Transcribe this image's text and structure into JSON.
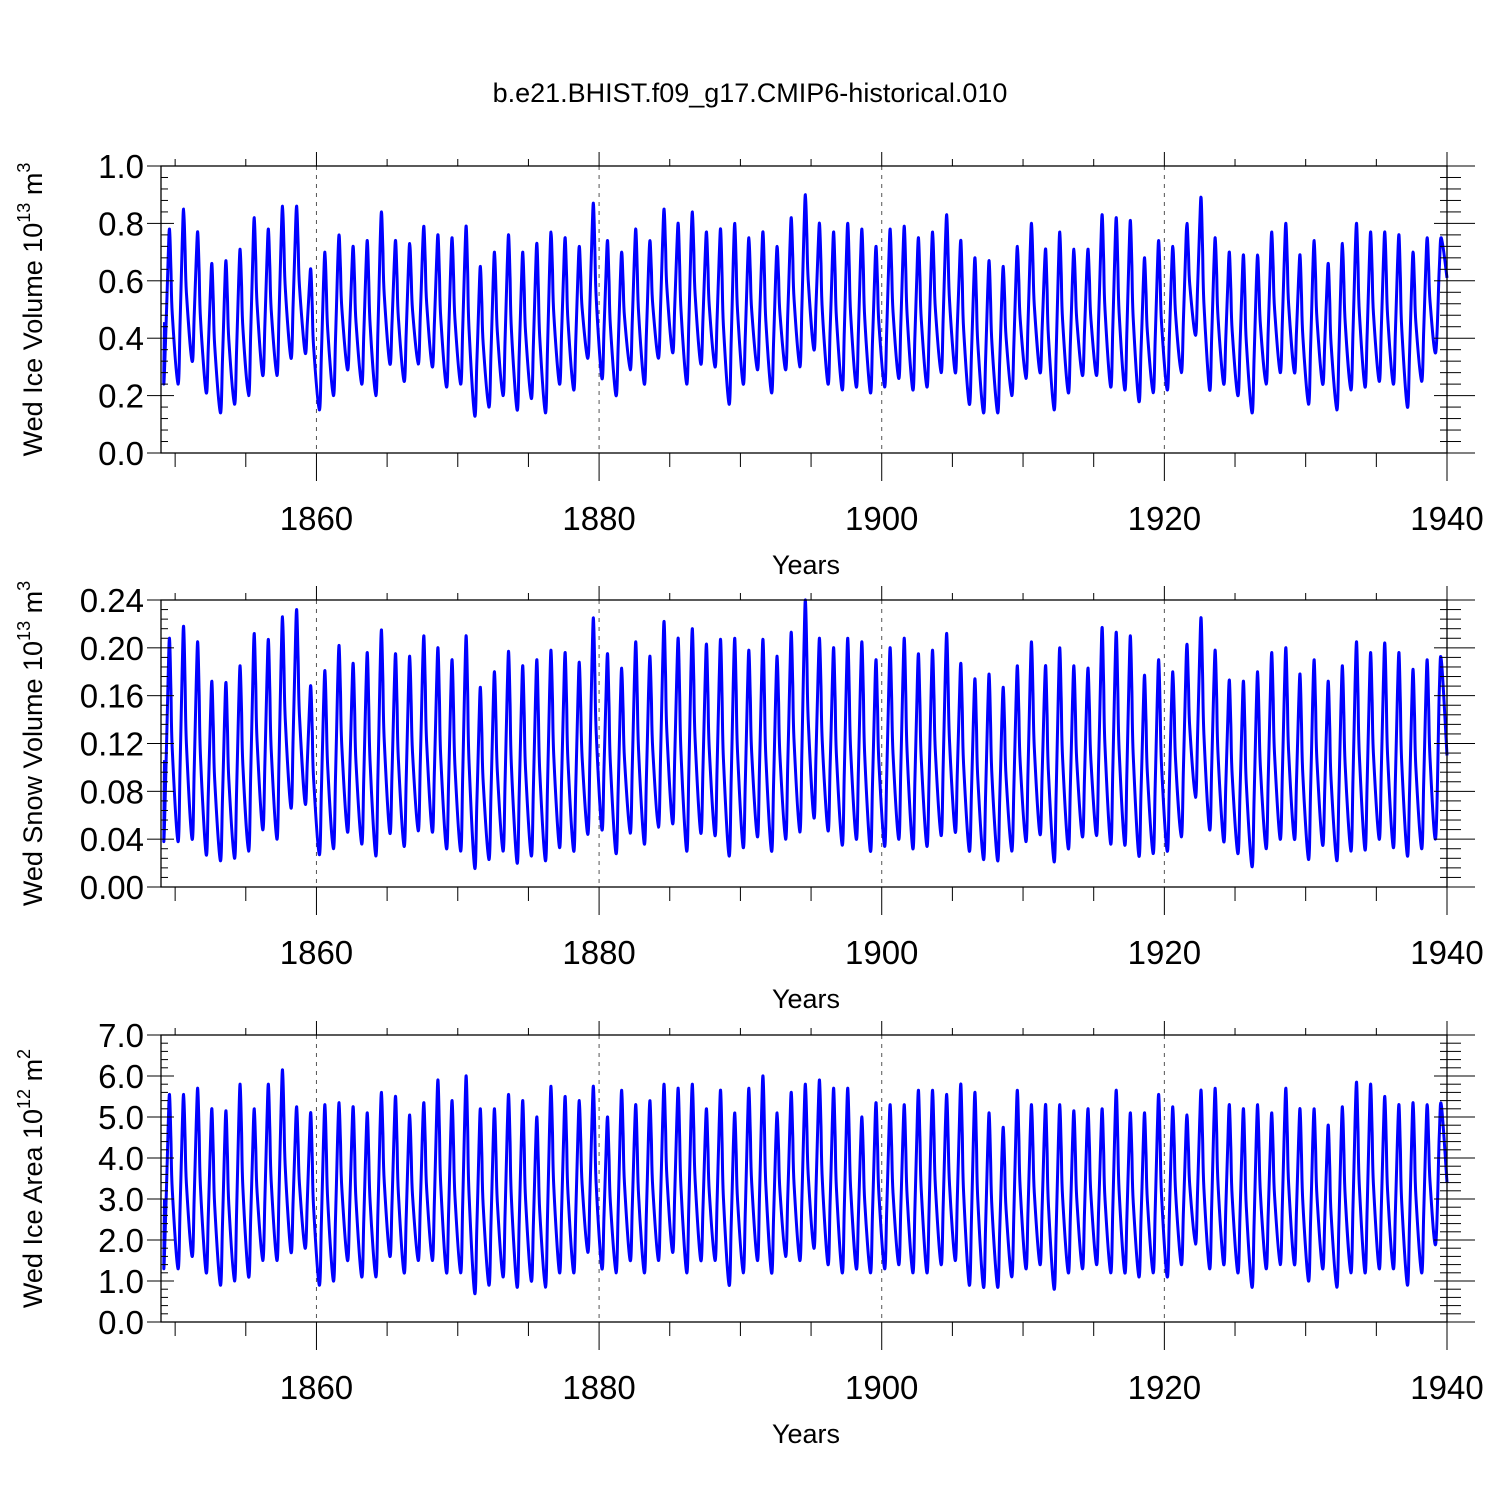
{
  "title": "b.e21.BHIST.f09_g17.CMIP6-historical.010",
  "colors": {
    "series": "#0000ff",
    "axis": "#000000",
    "grid": "#555555",
    "background": "#ffffff"
  },
  "chart_data": [
    {
      "type": "line",
      "ylabel": "Wed Ice Volume 10^13 m^3",
      "ylabel_parts": {
        "main": "Wed Ice Volume 10",
        "exp1": "13",
        "mid": " m",
        "exp2": "3"
      },
      "xlabel": "Years",
      "xlim": [
        1849,
        1940
      ],
      "ylim": [
        0,
        1.0
      ],
      "yticks": [
        0.0,
        0.2,
        0.4,
        0.6,
        0.8,
        1.0
      ],
      "ytick_labels": [
        "0.0",
        "0.2",
        "0.4",
        "0.6",
        "0.8",
        "1.0"
      ],
      "xticks": [
        1860,
        1880,
        1900,
        1920,
        1940
      ],
      "xtick_labels": [
        "1860",
        "1880",
        "1900",
        "1920",
        "1940"
      ],
      "series": [
        {
          "name": "Wed Ice Volume",
          "sample": "annual min/max, monthly seasonal cycle",
          "years": [
            1850,
            1851,
            1852,
            1853,
            1854,
            1855,
            1856,
            1857,
            1858,
            1859,
            1860,
            1861,
            1862,
            1863,
            1864,
            1865,
            1866,
            1867,
            1868,
            1869,
            1870,
            1871,
            1872,
            1873,
            1874,
            1875,
            1876,
            1877,
            1878,
            1879,
            1880,
            1881,
            1882,
            1883,
            1884,
            1885,
            1886,
            1887,
            1888,
            1889,
            1890,
            1891,
            1892,
            1893,
            1894,
            1895,
            1896,
            1897,
            1898,
            1899,
            1900,
            1901,
            1902,
            1903,
            1904,
            1905,
            1906,
            1907,
            1908,
            1909,
            1910,
            1911,
            1912,
            1913,
            1914,
            1915,
            1916,
            1917,
            1918,
            1919,
            1920,
            1921,
            1922,
            1923,
            1924,
            1925,
            1926,
            1927,
            1928,
            1929,
            1930,
            1931,
            1932,
            1933,
            1934,
            1935,
            1936,
            1937,
            1938,
            1939
          ],
          "min": [
            0.24,
            0.32,
            0.21,
            0.14,
            0.17,
            0.2,
            0.27,
            0.27,
            0.33,
            0.35,
            0.15,
            0.2,
            0.29,
            0.24,
            0.2,
            0.31,
            0.25,
            0.31,
            0.3,
            0.23,
            0.24,
            0.13,
            0.16,
            0.2,
            0.15,
            0.19,
            0.14,
            0.24,
            0.22,
            0.33,
            0.26,
            0.2,
            0.29,
            0.24,
            0.33,
            0.35,
            0.24,
            0.31,
            0.3,
            0.17,
            0.24,
            0.29,
            0.21,
            0.29,
            0.3,
            0.36,
            0.24,
            0.22,
            0.23,
            0.21,
            0.23,
            0.26,
            0.22,
            0.23,
            0.28,
            0.28,
            0.17,
            0.14,
            0.14,
            0.2,
            0.26,
            0.28,
            0.15,
            0.21,
            0.27,
            0.27,
            0.23,
            0.22,
            0.18,
            0.21,
            0.22,
            0.28,
            0.41,
            0.22,
            0.24,
            0.2,
            0.14,
            0.24,
            0.28,
            0.28,
            0.17,
            0.24,
            0.15,
            0.22,
            0.23,
            0.25,
            0.24,
            0.16,
            0.25,
            0.35
          ],
          "max": [
            0.78,
            0.85,
            0.77,
            0.66,
            0.67,
            0.71,
            0.82,
            0.78,
            0.86,
            0.86,
            0.64,
            0.7,
            0.76,
            0.72,
            0.74,
            0.84,
            0.74,
            0.73,
            0.79,
            0.76,
            0.75,
            0.79,
            0.65,
            0.7,
            0.76,
            0.7,
            0.73,
            0.77,
            0.75,
            0.72,
            0.87,
            0.74,
            0.7,
            0.78,
            0.74,
            0.85,
            0.8,
            0.84,
            0.77,
            0.78,
            0.8,
            0.75,
            0.77,
            0.72,
            0.82,
            0.9,
            0.8,
            0.77,
            0.8,
            0.78,
            0.72,
            0.78,
            0.79,
            0.75,
            0.77,
            0.83,
            0.74,
            0.68,
            0.67,
            0.65,
            0.72,
            0.8,
            0.71,
            0.77,
            0.71,
            0.71,
            0.83,
            0.82,
            0.81,
            0.68,
            0.74,
            0.72,
            0.8,
            0.89,
            0.75,
            0.7,
            0.69,
            0.69,
            0.77,
            0.8,
            0.69,
            0.74,
            0.66,
            0.73,
            0.8,
            0.77,
            0.77,
            0.76,
            0.7,
            0.75
          ],
          "end_value": 0.61
        }
      ]
    },
    {
      "type": "line",
      "ylabel": "Wed Snow Volume 10^13 m^3",
      "ylabel_parts": {
        "main": "Wed Snow Volume 10",
        "exp1": "13",
        "mid": " m",
        "exp2": "3"
      },
      "xlabel": "Years",
      "xlim": [
        1849,
        1940
      ],
      "ylim": [
        0,
        0.24
      ],
      "yticks": [
        0.0,
        0.04,
        0.08,
        0.12,
        0.16,
        0.2,
        0.24
      ],
      "ytick_labels": [
        "0.00",
        "0.04",
        "0.08",
        "0.12",
        "0.16",
        "0.20",
        "0.24"
      ],
      "xticks": [
        1860,
        1880,
        1900,
        1920,
        1940
      ],
      "xtick_labels": [
        "1860",
        "1880",
        "1900",
        "1920",
        "1940"
      ],
      "series": [
        {
          "name": "Wed Snow Volume",
          "sample": "annual min/max, monthly seasonal cycle",
          "years": [
            1850,
            1851,
            1852,
            1853,
            1854,
            1855,
            1856,
            1857,
            1858,
            1859,
            1860,
            1861,
            1862,
            1863,
            1864,
            1865,
            1866,
            1867,
            1868,
            1869,
            1870,
            1871,
            1872,
            1873,
            1874,
            1875,
            1876,
            1877,
            1878,
            1879,
            1880,
            1881,
            1882,
            1883,
            1884,
            1885,
            1886,
            1887,
            1888,
            1889,
            1890,
            1891,
            1892,
            1893,
            1894,
            1895,
            1896,
            1897,
            1898,
            1899,
            1900,
            1901,
            1902,
            1903,
            1904,
            1905,
            1906,
            1907,
            1908,
            1909,
            1910,
            1911,
            1912,
            1913,
            1914,
            1915,
            1916,
            1917,
            1918,
            1919,
            1920,
            1921,
            1922,
            1923,
            1924,
            1925,
            1926,
            1927,
            1928,
            1929,
            1930,
            1931,
            1932,
            1933,
            1934,
            1935,
            1936,
            1937,
            1938,
            1939
          ],
          "min": [
            0.038,
            0.04,
            0.027,
            0.022,
            0.024,
            0.03,
            0.048,
            0.04,
            0.066,
            0.07,
            0.027,
            0.032,
            0.046,
            0.036,
            0.026,
            0.045,
            0.034,
            0.047,
            0.046,
            0.032,
            0.03,
            0.016,
            0.023,
            0.03,
            0.02,
            0.026,
            0.022,
            0.033,
            0.03,
            0.044,
            0.048,
            0.028,
            0.045,
            0.036,
            0.05,
            0.053,
            0.03,
            0.045,
            0.043,
            0.026,
            0.033,
            0.042,
            0.03,
            0.04,
            0.046,
            0.058,
            0.047,
            0.035,
            0.04,
            0.03,
            0.034,
            0.04,
            0.032,
            0.034,
            0.043,
            0.046,
            0.03,
            0.023,
            0.022,
            0.03,
            0.038,
            0.044,
            0.021,
            0.032,
            0.042,
            0.043,
            0.036,
            0.035,
            0.026,
            0.028,
            0.03,
            0.042,
            0.075,
            0.048,
            0.038,
            0.028,
            0.017,
            0.032,
            0.04,
            0.04,
            0.023,
            0.035,
            0.022,
            0.03,
            0.031,
            0.04,
            0.033,
            0.026,
            0.032,
            0.041
          ],
          "max": [
            0.208,
            0.218,
            0.205,
            0.172,
            0.171,
            0.185,
            0.212,
            0.207,
            0.226,
            0.232,
            0.168,
            0.181,
            0.202,
            0.187,
            0.196,
            0.215,
            0.195,
            0.193,
            0.21,
            0.2,
            0.19,
            0.21,
            0.167,
            0.18,
            0.197,
            0.185,
            0.19,
            0.198,
            0.196,
            0.188,
            0.225,
            0.195,
            0.183,
            0.205,
            0.193,
            0.222,
            0.208,
            0.216,
            0.203,
            0.207,
            0.208,
            0.198,
            0.207,
            0.193,
            0.213,
            0.24,
            0.208,
            0.2,
            0.208,
            0.205,
            0.19,
            0.2,
            0.208,
            0.195,
            0.198,
            0.212,
            0.187,
            0.174,
            0.178,
            0.167,
            0.185,
            0.205,
            0.185,
            0.2,
            0.185,
            0.183,
            0.217,
            0.213,
            0.21,
            0.177,
            0.19,
            0.18,
            0.203,
            0.225,
            0.198,
            0.173,
            0.172,
            0.18,
            0.196,
            0.2,
            0.178,
            0.19,
            0.172,
            0.185,
            0.205,
            0.196,
            0.204,
            0.196,
            0.182,
            0.19
          ],
          "end_value": 0.11
        }
      ]
    },
    {
      "type": "line",
      "ylabel": "Wed Ice Area 10^12 m^2",
      "ylabel_parts": {
        "main": "Wed Ice Area 10",
        "exp1": "12",
        "mid": " m",
        "exp2": "2"
      },
      "xlabel": "Years",
      "xlim": [
        1849,
        1940
      ],
      "ylim": [
        0,
        7.0
      ],
      "yticks": [
        0.0,
        1.0,
        2.0,
        3.0,
        4.0,
        5.0,
        6.0,
        7.0
      ],
      "ytick_labels": [
        "0.0",
        "1.0",
        "2.0",
        "3.0",
        "4.0",
        "5.0",
        "6.0",
        "7.0"
      ],
      "xticks": [
        1860,
        1880,
        1900,
        1920,
        1940
      ],
      "xtick_labels": [
        "1860",
        "1880",
        "1900",
        "1920",
        "1940"
      ],
      "series": [
        {
          "name": "Wed Ice Area",
          "sample": "annual min/max, monthly seasonal cycle",
          "years": [
            1850,
            1851,
            1852,
            1853,
            1854,
            1855,
            1856,
            1857,
            1858,
            1859,
            1860,
            1861,
            1862,
            1863,
            1864,
            1865,
            1866,
            1867,
            1868,
            1869,
            1870,
            1871,
            1872,
            1873,
            1874,
            1875,
            1876,
            1877,
            1878,
            1879,
            1880,
            1881,
            1882,
            1883,
            1884,
            1885,
            1886,
            1887,
            1888,
            1889,
            1890,
            1891,
            1892,
            1893,
            1894,
            1895,
            1896,
            1897,
            1898,
            1899,
            1900,
            1901,
            1902,
            1903,
            1904,
            1905,
            1906,
            1907,
            1908,
            1909,
            1910,
            1911,
            1912,
            1913,
            1914,
            1915,
            1916,
            1917,
            1918,
            1919,
            1920,
            1921,
            1922,
            1923,
            1924,
            1925,
            1926,
            1927,
            1928,
            1929,
            1930,
            1931,
            1932,
            1933,
            1934,
            1935,
            1936,
            1937,
            1938,
            1939
          ],
          "min": [
            1.3,
            1.6,
            1.2,
            0.9,
            1.0,
            1.1,
            1.5,
            1.5,
            1.7,
            1.8,
            0.9,
            1.0,
            1.5,
            1.1,
            1.1,
            1.6,
            1.2,
            1.5,
            1.5,
            1.2,
            1.2,
            0.7,
            0.9,
            1.1,
            0.85,
            1.0,
            0.85,
            1.2,
            1.2,
            1.7,
            1.3,
            1.2,
            1.5,
            1.2,
            1.5,
            1.7,
            1.2,
            1.5,
            1.5,
            0.9,
            1.2,
            1.5,
            1.2,
            1.6,
            1.5,
            1.8,
            1.4,
            1.2,
            1.3,
            1.2,
            1.3,
            1.4,
            1.2,
            1.2,
            1.4,
            1.5,
            0.9,
            0.85,
            0.85,
            1.1,
            1.3,
            1.4,
            0.8,
            1.2,
            1.3,
            1.4,
            1.2,
            1.2,
            1.1,
            1.2,
            1.1,
            1.4,
            1.9,
            1.3,
            1.4,
            1.2,
            0.85,
            1.3,
            1.4,
            1.4,
            1.0,
            1.3,
            0.85,
            1.2,
            1.2,
            1.3,
            1.3,
            0.9,
            1.2,
            1.9
          ],
          "max": [
            5.55,
            5.55,
            5.7,
            5.2,
            5.15,
            5.8,
            5.2,
            5.8,
            6.15,
            5.25,
            5.1,
            5.3,
            5.35,
            5.25,
            5.1,
            5.6,
            5.5,
            5.05,
            5.35,
            5.9,
            5.4,
            6.0,
            5.2,
            5.2,
            5.55,
            5.4,
            5.0,
            5.75,
            5.5,
            5.4,
            5.75,
            5.0,
            5.65,
            5.3,
            5.4,
            5.8,
            5.7,
            5.8,
            5.2,
            5.65,
            5.1,
            5.7,
            6.0,
            5.1,
            5.6,
            5.8,
            5.9,
            5.7,
            5.7,
            5.0,
            5.35,
            5.3,
            5.3,
            5.65,
            5.65,
            5.55,
            5.8,
            5.6,
            5.1,
            4.75,
            5.65,
            5.3,
            5.3,
            5.3,
            5.15,
            5.2,
            5.2,
            5.65,
            5.1,
            5.1,
            5.55,
            5.25,
            5.05,
            5.65,
            5.7,
            5.3,
            5.2,
            5.3,
            5.1,
            5.7,
            5.2,
            5.2,
            4.8,
            5.25,
            5.85,
            5.8,
            5.5,
            5.3,
            5.35,
            5.3
          ],
          "end_value": 3.4
        }
      ]
    }
  ]
}
